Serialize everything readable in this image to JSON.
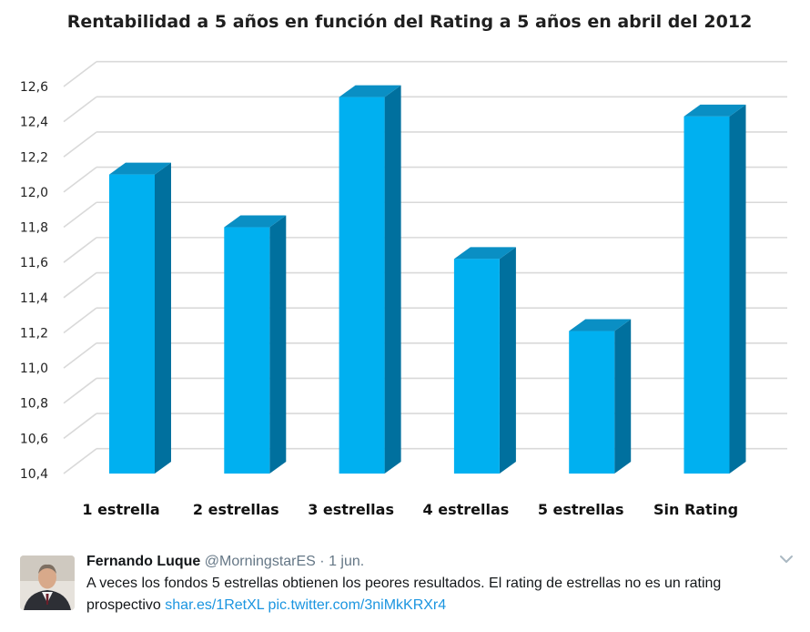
{
  "chart_data": {
    "type": "bar",
    "title": "Rentabilidad a 5 años en función del Rating a 5 años en abril del 2012",
    "categories": [
      "1 estrella",
      "2 estrellas",
      "3 estrellas",
      "4 estrellas",
      "5 estrellas",
      "Sin Rating"
    ],
    "values": [
      12.1,
      11.8,
      12.54,
      11.62,
      11.21,
      12.43
    ],
    "ylim": [
      10.4,
      12.6
    ],
    "yticks": [
      "10,4",
      "10,6",
      "10,8",
      "11,0",
      "11,2",
      "11,4",
      "11,6",
      "11,8",
      "12,0",
      "12,2",
      "12,4",
      "12,6"
    ],
    "xlabel": "",
    "ylabel": "",
    "grid": true,
    "style": "3d-column",
    "colors": {
      "front": "#00b0f0",
      "top": "#0a8fc4",
      "side": "#00709e",
      "grid": "#d9d9d9"
    }
  },
  "tweet": {
    "author_name": "Fernando Luque",
    "handle": "@MorningstarES",
    "separator": "·",
    "date": "1 jun.",
    "text": "A veces los fondos 5 estrellas obtienen los peores resultados. El rating de estrellas no es un rating prospectivo",
    "link1": "shar.es/1RetXL",
    "link2": "pic.twitter.com/3niMkKRXr4",
    "avatar_icon": "person-avatar-icon",
    "menu_icon": "chevron-down-icon"
  }
}
